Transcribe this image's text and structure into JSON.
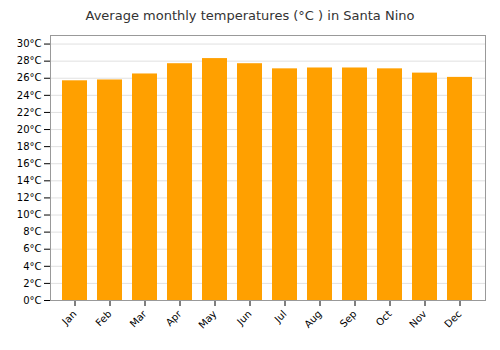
{
  "chart_data": {
    "type": "bar",
    "title": "Average monthly temperatures (°C ) in Santa Nino",
    "categories": [
      "Jan",
      "Feb",
      "Mar",
      "Apr",
      "May",
      "Jun",
      "Jul",
      "Aug",
      "Sep",
      "Oct",
      "Nov",
      "Dec"
    ],
    "values": [
      25.7,
      25.8,
      26.5,
      27.7,
      28.3,
      27.7,
      27.1,
      27.2,
      27.2,
      27.1,
      26.6,
      26.1
    ],
    "color": "#FFA000",
    "ylim": [
      0,
      31
    ],
    "yticks": [
      {
        "value": 0,
        "label": "0°C"
      },
      {
        "value": 2,
        "label": "2°C"
      },
      {
        "value": 4,
        "label": "4°C"
      },
      {
        "value": 6,
        "label": "6°C"
      },
      {
        "value": 8,
        "label": "8°C"
      },
      {
        "value": 10,
        "label": "10°C"
      },
      {
        "value": 12,
        "label": "12°C"
      },
      {
        "value": 14,
        "label": "14°C"
      },
      {
        "value": 16,
        "label": "16°C"
      },
      {
        "value": 18,
        "label": "18°C"
      },
      {
        "value": 20,
        "label": "20°C"
      },
      {
        "value": 22,
        "label": "22°C"
      },
      {
        "value": 24,
        "label": "24°C"
      },
      {
        "value": 26,
        "label": "26°C"
      },
      {
        "value": 28,
        "label": "28°C"
      },
      {
        "value": 30,
        "label": "30°C"
      }
    ],
    "grid": true
  }
}
